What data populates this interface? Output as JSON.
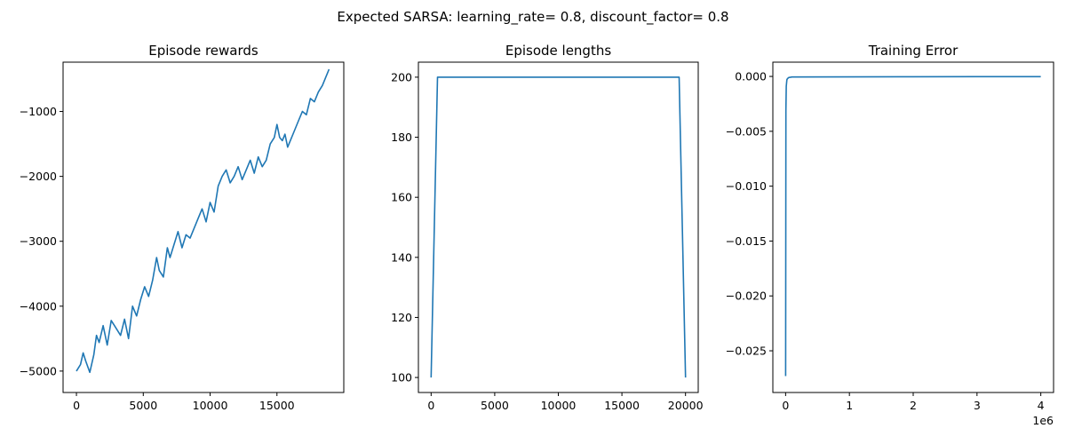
{
  "suptitle": "Expected SARSA: learning_rate= 0.8, discount_factor= 0.8",
  "colors": {
    "line": "#1f77b4",
    "axis": "#000000",
    "background": "#ffffff"
  },
  "chart_data": [
    {
      "type": "line",
      "title": "Episode rewards",
      "xlabel": "",
      "ylabel": "",
      "xlim": [
        -1000,
        20000
      ],
      "ylim": [
        -5330,
        -240
      ],
      "xticks": [
        0,
        5000,
        10000,
        15000
      ],
      "xtick_labels": [
        "0",
        "5000",
        "10000",
        "15000"
      ],
      "yticks": [
        -5000,
        -4000,
        -3000,
        -2000,
        -1000
      ],
      "ytick_labels": [
        "−5000",
        "−4000",
        "−3000",
        "−2000",
        "−1000"
      ],
      "series": [
        {
          "x": [
            0,
            300,
            500,
            700,
            1000,
            1300,
            1500,
            1700,
            2000,
            2300,
            2600,
            3000,
            3300,
            3600,
            3900,
            4200,
            4500,
            4800,
            5100,
            5400,
            5700,
            6000,
            6200,
            6500,
            6800,
            7000,
            7300,
            7600,
            7900,
            8200,
            8500,
            8800,
            9100,
            9400,
            9700,
            10000,
            10300,
            10600,
            10900,
            11200,
            11500,
            11800,
            12100,
            12400,
            12700,
            13000,
            13300,
            13600,
            13900,
            14200,
            14500,
            14800,
            15000,
            15200,
            15400,
            15600,
            15800,
            16000,
            16300,
            16600,
            16900,
            17200,
            17500,
            17800,
            18100,
            18400,
            18700,
            18900
          ],
          "values": [
            -5000,
            -4900,
            -4720,
            -4850,
            -5020,
            -4750,
            -4450,
            -4560,
            -4300,
            -4600,
            -4220,
            -4350,
            -4450,
            -4200,
            -4500,
            -4000,
            -4150,
            -3900,
            -3700,
            -3850,
            -3600,
            -3250,
            -3450,
            -3550,
            -3100,
            -3250,
            -3050,
            -2850,
            -3100,
            -2900,
            -2950,
            -2800,
            -2650,
            -2500,
            -2700,
            -2400,
            -2550,
            -2150,
            -2000,
            -1900,
            -2100,
            -2000,
            -1850,
            -2050,
            -1900,
            -1750,
            -1950,
            -1700,
            -1850,
            -1750,
            -1500,
            -1400,
            -1200,
            -1400,
            -1450,
            -1350,
            -1550,
            -1450,
            -1300,
            -1150,
            -1000,
            -1050,
            -800,
            -850,
            -700,
            -600,
            -450,
            -350
          ]
        }
      ]
    },
    {
      "type": "line",
      "title": "Episode lengths",
      "xlabel": "",
      "ylabel": "",
      "xlim": [
        -1000,
        21000
      ],
      "ylim": [
        95,
        205
      ],
      "xticks": [
        0,
        5000,
        10000,
        15000,
        20000
      ],
      "xtick_labels": [
        "0",
        "5000",
        "10000",
        "15000",
        "20000"
      ],
      "yticks": [
        100,
        120,
        140,
        160,
        180,
        200
      ],
      "ytick_labels": [
        "100",
        "120",
        "140",
        "160",
        "180",
        "200"
      ],
      "series": [
        {
          "x": [
            0,
            500,
            19500,
            20000
          ],
          "values": [
            100,
            200,
            200,
            100
          ]
        }
      ]
    },
    {
      "type": "line",
      "title": "Training Error",
      "xlabel": "",
      "ylabel": "",
      "offset_text": "1e6",
      "xlim": [
        -200000,
        4200000
      ],
      "ylim": [
        -0.0288,
        0.0013
      ],
      "xticks": [
        0,
        1000000,
        2000000,
        3000000,
        4000000
      ],
      "xtick_labels": [
        "0",
        "1",
        "2",
        "3",
        "4"
      ],
      "yticks": [
        0.0,
        -0.005,
        -0.01,
        -0.015,
        -0.02,
        -0.025
      ],
      "ytick_labels": [
        "0.000",
        "−0.005",
        "−0.010",
        "−0.015",
        "−0.020",
        "−0.025"
      ],
      "series": [
        {
          "x": [
            0,
            5000,
            10000,
            20000,
            30000,
            50000,
            100000,
            1000000,
            2000000,
            3000000,
            4000000
          ],
          "values": [
            -0.0273,
            -0.0031,
            -0.0009,
            -0.0003,
            -0.0002,
            -0.0001,
            -5e-05,
            -4e-05,
            -3e-05,
            -2e-05,
            -2e-05
          ]
        }
      ]
    }
  ]
}
